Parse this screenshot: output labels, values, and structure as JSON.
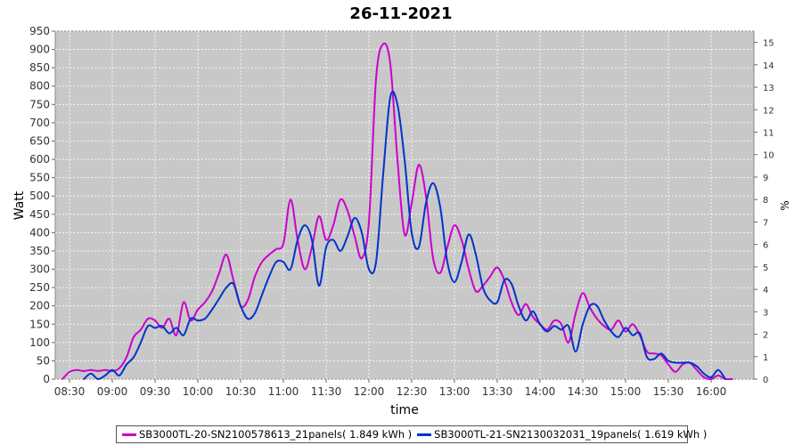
{
  "chart_data": {
    "type": "line",
    "title": "26-11-2021",
    "xlabel": "time",
    "ylabel": "Watt",
    "y2label": "%",
    "ylim": [
      0,
      950
    ],
    "y2lim": [
      0,
      15.5
    ],
    "xlim": [
      "08:20",
      "16:30"
    ],
    "grid": true,
    "legend_position": "bottom",
    "x_ticks": [
      "08:30",
      "09:00",
      "09:30",
      "10:00",
      "10:30",
      "11:00",
      "11:30",
      "12:00",
      "12:30",
      "13:00",
      "13:30",
      "14:00",
      "14:30",
      "15:00",
      "15:30",
      "16:00"
    ],
    "y_ticks": [
      0,
      50,
      100,
      150,
      200,
      250,
      300,
      350,
      400,
      450,
      500,
      550,
      600,
      650,
      700,
      750,
      800,
      850,
      900,
      950
    ],
    "y2_ticks": [
      0,
      1,
      2,
      3,
      4,
      5,
      6,
      7,
      8,
      9,
      10,
      11,
      12,
      13,
      14,
      15
    ],
    "series": [
      {
        "name": "SB3000TL-20-SN2100578613_21panels( 1.849 kWh )",
        "color": "#cc00cc",
        "points": [
          [
            "08:25",
            0
          ],
          [
            "08:30",
            20
          ],
          [
            "08:35",
            25
          ],
          [
            "08:40",
            22
          ],
          [
            "08:45",
            25
          ],
          [
            "08:50",
            22
          ],
          [
            "08:55",
            25
          ],
          [
            "09:00",
            22
          ],
          [
            "09:05",
            30
          ],
          [
            "09:10",
            60
          ],
          [
            "09:15",
            115
          ],
          [
            "09:20",
            135
          ],
          [
            "09:25",
            165
          ],
          [
            "09:30",
            160
          ],
          [
            "09:35",
            140
          ],
          [
            "09:40",
            165
          ],
          [
            "09:45",
            120
          ],
          [
            "09:50",
            210
          ],
          [
            "09:55",
            160
          ],
          [
            "10:00",
            190
          ],
          [
            "10:05",
            210
          ],
          [
            "10:10",
            240
          ],
          [
            "10:15",
            290
          ],
          [
            "10:20",
            340
          ],
          [
            "10:25",
            270
          ],
          [
            "10:30",
            200
          ],
          [
            "10:35",
            215
          ],
          [
            "10:40",
            280
          ],
          [
            "10:45",
            320
          ],
          [
            "10:50",
            340
          ],
          [
            "10:55",
            355
          ],
          [
            "11:00",
            370
          ],
          [
            "11:05",
            490
          ],
          [
            "11:10",
            380
          ],
          [
            "11:15",
            300
          ],
          [
            "11:20",
            360
          ],
          [
            "11:25",
            445
          ],
          [
            "11:30",
            380
          ],
          [
            "11:35",
            420
          ],
          [
            "11:40",
            490
          ],
          [
            "11:45",
            460
          ],
          [
            "11:50",
            390
          ],
          [
            "11:55",
            330
          ],
          [
            "12:00",
            430
          ],
          [
            "12:05",
            820
          ],
          [
            "12:10",
            915
          ],
          [
            "12:15",
            860
          ],
          [
            "12:20",
            600
          ],
          [
            "12:25",
            395
          ],
          [
            "12:30",
            480
          ],
          [
            "12:35",
            585
          ],
          [
            "12:40",
            500
          ],
          [
            "12:45",
            330
          ],
          [
            "12:50",
            290
          ],
          [
            "12:55",
            360
          ],
          [
            "13:00",
            420
          ],
          [
            "13:05",
            380
          ],
          [
            "13:10",
            300
          ],
          [
            "13:15",
            240
          ],
          [
            "13:20",
            255
          ],
          [
            "13:25",
            280
          ],
          [
            "13:30",
            305
          ],
          [
            "13:35",
            270
          ],
          [
            "13:40",
            210
          ],
          [
            "13:45",
            175
          ],
          [
            "13:50",
            205
          ],
          [
            "13:55",
            170
          ],
          [
            "14:00",
            150
          ],
          [
            "14:05",
            135
          ],
          [
            "14:10",
            160
          ],
          [
            "14:15",
            150
          ],
          [
            "14:20",
            100
          ],
          [
            "14:25",
            180
          ],
          [
            "14:30",
            235
          ],
          [
            "14:35",
            195
          ],
          [
            "14:40",
            165
          ],
          [
            "14:45",
            145
          ],
          [
            "14:50",
            135
          ],
          [
            "14:55",
            160
          ],
          [
            "15:00",
            130
          ],
          [
            "15:05",
            150
          ],
          [
            "15:10",
            120
          ],
          [
            "15:15",
            75
          ],
          [
            "15:20",
            70
          ],
          [
            "15:25",
            65
          ],
          [
            "15:30",
            40
          ],
          [
            "15:35",
            20
          ],
          [
            "15:40",
            40
          ],
          [
            "15:45",
            45
          ],
          [
            "15:50",
            25
          ],
          [
            "15:55",
            5
          ],
          [
            "16:00",
            0
          ],
          [
            "16:05",
            10
          ],
          [
            "16:10",
            0
          ],
          [
            "16:15",
            0
          ]
        ]
      },
      {
        "name": "SB3000TL-21-SN2130032031_19panels( 1.619 kWh )",
        "color": "#0033cc",
        "points": [
          [
            "08:40",
            0
          ],
          [
            "08:45",
            15
          ],
          [
            "08:50",
            0
          ],
          [
            "08:55",
            10
          ],
          [
            "09:00",
            25
          ],
          [
            "09:05",
            10
          ],
          [
            "09:10",
            40
          ],
          [
            "09:15",
            60
          ],
          [
            "09:20",
            100
          ],
          [
            "09:25",
            145
          ],
          [
            "09:30",
            140
          ],
          [
            "09:35",
            145
          ],
          [
            "09:40",
            125
          ],
          [
            "09:45",
            140
          ],
          [
            "09:50",
            120
          ],
          [
            "09:55",
            165
          ],
          [
            "10:00",
            160
          ],
          [
            "10:05",
            165
          ],
          [
            "10:10",
            190
          ],
          [
            "10:15",
            220
          ],
          [
            "10:20",
            250
          ],
          [
            "10:25",
            260
          ],
          [
            "10:30",
            200
          ],
          [
            "10:35",
            165
          ],
          [
            "10:40",
            180
          ],
          [
            "10:45",
            230
          ],
          [
            "10:50",
            280
          ],
          [
            "10:55",
            320
          ],
          [
            "11:00",
            320
          ],
          [
            "11:05",
            300
          ],
          [
            "11:10",
            380
          ],
          [
            "11:15",
            420
          ],
          [
            "11:20",
            380
          ],
          [
            "11:25",
            255
          ],
          [
            "11:30",
            360
          ],
          [
            "11:35",
            380
          ],
          [
            "11:40",
            350
          ],
          [
            "11:45",
            390
          ],
          [
            "11:50",
            440
          ],
          [
            "11:55",
            400
          ],
          [
            "12:00",
            300
          ],
          [
            "12:05",
            320
          ],
          [
            "12:10",
            560
          ],
          [
            "12:15",
            770
          ],
          [
            "12:20",
            750
          ],
          [
            "12:25",
            600
          ],
          [
            "12:30",
            400
          ],
          [
            "12:35",
            360
          ],
          [
            "12:40",
            480
          ],
          [
            "12:45",
            535
          ],
          [
            "12:50",
            470
          ],
          [
            "12:55",
            320
          ],
          [
            "13:00",
            265
          ],
          [
            "13:05",
            320
          ],
          [
            "13:10",
            395
          ],
          [
            "13:15",
            340
          ],
          [
            "13:20",
            250
          ],
          [
            "13:25",
            215
          ],
          [
            "13:30",
            210
          ],
          [
            "13:35",
            270
          ],
          [
            "13:40",
            260
          ],
          [
            "13:45",
            200
          ],
          [
            "13:50",
            160
          ],
          [
            "13:55",
            185
          ],
          [
            "14:00",
            150
          ],
          [
            "14:05",
            130
          ],
          [
            "14:10",
            145
          ],
          [
            "14:15",
            135
          ],
          [
            "14:20",
            145
          ],
          [
            "14:25",
            75
          ],
          [
            "14:30",
            150
          ],
          [
            "14:35",
            200
          ],
          [
            "14:40",
            200
          ],
          [
            "14:45",
            160
          ],
          [
            "14:50",
            130
          ],
          [
            "14:55",
            115
          ],
          [
            "15:00",
            140
          ],
          [
            "15:05",
            120
          ],
          [
            "15:10",
            125
          ],
          [
            "15:15",
            60
          ],
          [
            "15:20",
            55
          ],
          [
            "15:25",
            70
          ],
          [
            "15:30",
            50
          ],
          [
            "15:35",
            45
          ],
          [
            "15:40",
            45
          ],
          [
            "15:45",
            45
          ],
          [
            "15:50",
            35
          ],
          [
            "15:55",
            15
          ],
          [
            "16:00",
            5
          ],
          [
            "16:05",
            25
          ],
          [
            "16:10",
            0
          ]
        ]
      }
    ]
  }
}
